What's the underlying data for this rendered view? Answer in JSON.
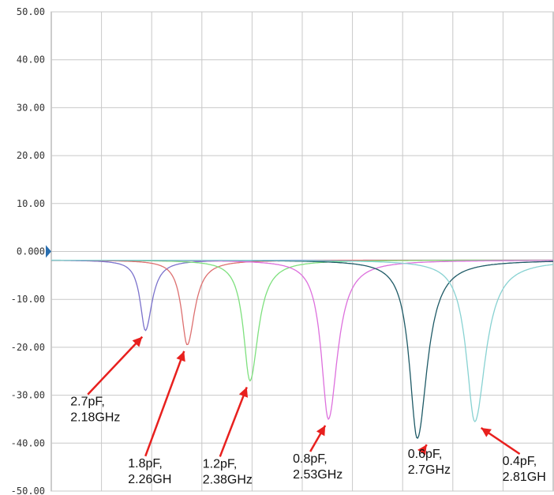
{
  "chart_data": {
    "type": "line",
    "title": "",
    "xlabel": "",
    "ylabel": "",
    "ylim": [
      -50,
      50
    ],
    "yticks": [
      50,
      40,
      30,
      20,
      10,
      0,
      -10,
      -20,
      -30,
      -40,
      -50
    ],
    "ytick_labels": [
      "50.00",
      "40.00",
      "30.00",
      "20.00",
      "10.00",
      "0.000",
      "-10.00",
      "-20.00",
      "-30.00",
      "-40.00",
      "-50.00"
    ],
    "grid": true,
    "x_unit": "GHz",
    "xlim": [
      2.0,
      2.96
    ],
    "series": [
      {
        "color": "#7b72cc",
        "resonance_ghz": 2.18,
        "min_db": -16.5
      },
      {
        "color": "#dd7070",
        "resonance_ghz": 2.26,
        "min_db": -19.5
      },
      {
        "color": "#7ee07e",
        "resonance_ghz": 2.38,
        "min_db": -27.0
      },
      {
        "color": "#dd70dd",
        "resonance_ghz": 2.53,
        "min_db": -35.0
      },
      {
        "color": "#1e5a66",
        "resonance_ghz": 2.7,
        "min_db": -39.0
      },
      {
        "color": "#88d2d2",
        "resonance_ghz": 2.81,
        "min_db": -35.5
      }
    ],
    "annotations": [
      {
        "line1": "2.7pF,",
        "line2": "2.18GHz",
        "x_ghz": 2.18,
        "y_db": -16.5
      },
      {
        "line1": "1.8pF,",
        "line2": "2.26GH",
        "x_ghz": 2.26,
        "y_db": -19.5
      },
      {
        "line1": "1.2pF,",
        "line2": "2.38GHz",
        "x_ghz": 2.38,
        "y_db": -27.0
      },
      {
        "line1": "0.8pF,",
        "line2": "2.53GHz",
        "x_ghz": 2.53,
        "y_db": -35.0
      },
      {
        "line1": "0.6pF,",
        "line2": "2.7GHz",
        "x_ghz": 2.7,
        "y_db": -39.0
      },
      {
        "line1": "0.4pF,",
        "line2": "2.81GH",
        "x_ghz": 2.81,
        "y_db": -35.5
      }
    ],
    "annotation_color": "#e8201e",
    "grid_color": "#c8c8c8",
    "reference_marker_color": "#2a6fb0"
  }
}
